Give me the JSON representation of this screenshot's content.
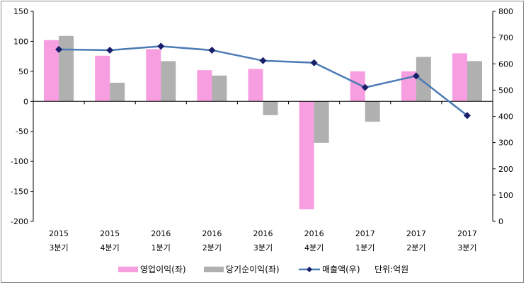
{
  "chart_data": {
    "type": "bar",
    "title": "",
    "categories": [
      [
        "2015",
        "3분기"
      ],
      [
        "2015",
        "4분기"
      ],
      [
        "2016",
        "1분기"
      ],
      [
        "2016",
        "2분기"
      ],
      [
        "2016",
        "3분기"
      ],
      [
        "2016",
        "4분기"
      ],
      [
        "2017",
        "1분기"
      ],
      [
        "2017",
        "2분기"
      ],
      [
        "2017",
        "3분기"
      ]
    ],
    "series": [
      {
        "name": "영업이익(좌)",
        "type": "bar",
        "axis": "left",
        "color": "#f79ee0",
        "values": [
          102,
          76,
          87,
          52,
          54,
          -180,
          50,
          50,
          80
        ]
      },
      {
        "name": "당기순이익(좌)",
        "type": "bar",
        "axis": "left",
        "color": "#b0b0b0",
        "values": [
          109,
          31,
          67,
          43,
          -23,
          -69,
          -34,
          74,
          67
        ]
      },
      {
        "name": "매출액(우)",
        "type": "line",
        "axis": "right",
        "color": "#4a7ab5",
        "marker_color": "#1a1f6b",
        "values": [
          655,
          652,
          667,
          652,
          612,
          604,
          510,
          554,
          403
        ]
      }
    ],
    "y_left": {
      "min": -200,
      "max": 150,
      "ticks": [
        "150",
        "100",
        "50",
        "0",
        "-50",
        "-100",
        "-150",
        "-200"
      ]
    },
    "y_right": {
      "min": 0,
      "max": 800,
      "ticks": [
        "800",
        "700",
        "600",
        "500",
        "400",
        "300",
        "200",
        "100",
        "0"
      ]
    },
    "unit_note": "단위:억원",
    "legend_position": "bottom"
  }
}
